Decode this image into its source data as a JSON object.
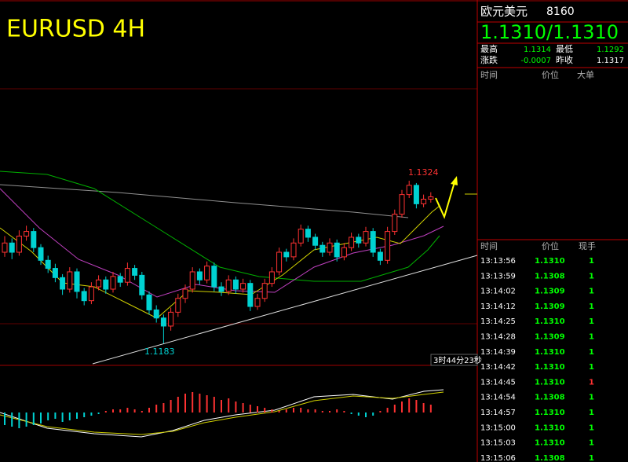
{
  "chart": {
    "title": "EURUSD 4H",
    "high_label": 1.1324,
    "low_label": 1.1183,
    "countdown": "3时44分23秒",
    "up_color": "#ff3232",
    "down_color": "#00d2d2",
    "candles": [
      [
        1.1262,
        1.1276,
        1.1258,
        1.127
      ],
      [
        1.127,
        1.1274,
        1.1256,
        1.1262
      ],
      [
        1.1262,
        1.1281,
        1.1259,
        1.1276
      ],
      [
        1.1276,
        1.1285,
        1.1272,
        1.128
      ],
      [
        1.128,
        1.1283,
        1.1262,
        1.1266
      ],
      [
        1.1266,
        1.1269,
        1.1251,
        1.1255
      ],
      [
        1.1255,
        1.1259,
        1.1244,
        1.1248
      ],
      [
        1.1248,
        1.1252,
        1.1236,
        1.124
      ],
      [
        1.124,
        1.1243,
        1.1225,
        1.123
      ],
      [
        1.123,
        1.1249,
        1.1227,
        1.1245
      ],
      [
        1.1245,
        1.1248,
        1.1222,
        1.1228
      ],
      [
        1.1228,
        1.1231,
        1.1216,
        1.122
      ],
      [
        1.122,
        1.1236,
        1.1217,
        1.1232
      ],
      [
        1.1232,
        1.1242,
        1.1229,
        1.1238
      ],
      [
        1.1238,
        1.1241,
        1.1226,
        1.123
      ],
      [
        1.123,
        1.1245,
        1.1227,
        1.1241
      ],
      [
        1.1241,
        1.1244,
        1.1232,
        1.1236
      ],
      [
        1.1236,
        1.1253,
        1.1233,
        1.1248
      ],
      [
        1.1248,
        1.1251,
        1.1238,
        1.1242
      ],
      [
        1.1242,
        1.1245,
        1.1221,
        1.1225
      ],
      [
        1.1225,
        1.1228,
        1.1208,
        1.1212
      ],
      [
        1.1212,
        1.1216,
        1.1201,
        1.1205
      ],
      [
        1.1205,
        1.1208,
        1.1183,
        1.1198
      ],
      [
        1.1198,
        1.1214,
        1.1194,
        1.121
      ],
      [
        1.121,
        1.1226,
        1.1206,
        1.1222
      ],
      [
        1.1222,
        1.1234,
        1.1218,
        1.123
      ],
      [
        1.123,
        1.1249,
        1.1227,
        1.1245
      ],
      [
        1.1245,
        1.1248,
        1.1234,
        1.1238
      ],
      [
        1.1238,
        1.1254,
        1.1235,
        1.125
      ],
      [
        1.125,
        1.1253,
        1.1228,
        1.1232
      ],
      [
        1.1232,
        1.1236,
        1.1224,
        1.1228
      ],
      [
        1.1228,
        1.1242,
        1.1225,
        1.1238
      ],
      [
        1.1238,
        1.1241,
        1.1226,
        1.123
      ],
      [
        1.123,
        1.1239,
        1.1227,
        1.1235
      ],
      [
        1.1235,
        1.1238,
        1.1211,
        1.1215
      ],
      [
        1.1215,
        1.1226,
        1.1212,
        1.1222
      ],
      [
        1.1222,
        1.1239,
        1.1219,
        1.1235
      ],
      [
        1.1235,
        1.1249,
        1.1232,
        1.1245
      ],
      [
        1.1245,
        1.1266,
        1.1242,
        1.1262
      ],
      [
        1.1262,
        1.1265,
        1.1254,
        1.1258
      ],
      [
        1.1258,
        1.1274,
        1.1255,
        1.127
      ],
      [
        1.127,
        1.1286,
        1.1267,
        1.1282
      ],
      [
        1.1282,
        1.1285,
        1.1271,
        1.1275
      ],
      [
        1.1275,
        1.1278,
        1.1264,
        1.1268
      ],
      [
        1.1268,
        1.1271,
        1.1258,
        1.1262
      ],
      [
        1.1262,
        1.1274,
        1.1259,
        1.127
      ],
      [
        1.127,
        1.1273,
        1.1254,
        1.1258
      ],
      [
        1.1258,
        1.127,
        1.1255,
        1.1266
      ],
      [
        1.1266,
        1.1279,
        1.1263,
        1.1275
      ],
      [
        1.1275,
        1.1278,
        1.1266,
        1.127
      ],
      [
        1.127,
        1.1284,
        1.1267,
        1.128
      ],
      [
        1.128,
        1.1283,
        1.1258,
        1.1262
      ],
      [
        1.1262,
        1.1265,
        1.1251,
        1.1255
      ],
      [
        1.1255,
        1.1284,
        1.1252,
        1.128
      ],
      [
        1.128,
        1.1299,
        1.1277,
        1.1295
      ],
      [
        1.1295,
        1.1316,
        1.1292,
        1.1312
      ],
      [
        1.1312,
        1.1324,
        1.1309,
        1.132
      ],
      [
        1.132,
        1.1322,
        1.13,
        1.1304
      ],
      [
        1.1304,
        1.1312,
        1.1301,
        1.1308
      ],
      [
        1.1308,
        1.1314,
        1.1305,
        1.131
      ]
    ],
    "histogram": [
      -8,
      -9,
      -10,
      -9,
      -8,
      -7,
      -5,
      -4,
      -6,
      -5,
      -4,
      -3,
      -2,
      -1,
      1,
      2,
      2,
      3,
      2,
      1,
      3,
      5,
      6,
      8,
      10,
      12,
      13,
      12,
      11,
      10,
      8,
      9,
      7,
      6,
      5,
      4,
      3,
      2,
      1,
      2,
      3,
      3,
      2,
      2,
      1,
      1,
      2,
      1,
      -1,
      -2,
      -3,
      -2,
      1,
      3,
      5,
      7,
      9,
      8,
      6,
      5
    ]
  },
  "quote": {
    "name": "欧元美元",
    "code": "8160",
    "price": "1.1310/1.1310",
    "stats": [
      {
        "label": "最高",
        "value": "1.1314",
        "color": "#00ff00"
      },
      {
        "label": "最低",
        "value": "1.1292",
        "color": "#00ff00"
      },
      {
        "label": "涨跌",
        "value": "-0.0007",
        "color": "#00ff00"
      },
      {
        "label": "昨收",
        "value": "1.1317",
        "color": "#ffffff"
      }
    ],
    "big_orders_header": [
      "时间",
      "价位",
      "大单"
    ]
  },
  "ticks": {
    "header": [
      "时间",
      "价位",
      "现手"
    ],
    "rows": [
      {
        "time": "13:13:56",
        "price": "1.1310",
        "volume": 1,
        "color": "#00ff00"
      },
      {
        "time": "13:13:59",
        "price": "1.1308",
        "volume": 1,
        "color": "#00ff00"
      },
      {
        "time": "13:14:02",
        "price": "1.1309",
        "volume": 1,
        "color": "#00ff00"
      },
      {
        "time": "13:14:12",
        "price": "1.1309",
        "volume": 1,
        "color": "#00ff00"
      },
      {
        "time": "13:14:25",
        "price": "1.1310",
        "volume": 1,
        "color": "#00ff00"
      },
      {
        "time": "13:14:28",
        "price": "1.1309",
        "volume": 1,
        "color": "#00ff00"
      },
      {
        "time": "13:14:39",
        "price": "1.1310",
        "volume": 1,
        "color": "#00ff00"
      },
      {
        "time": "13:14:42",
        "price": "1.1310",
        "volume": 1,
        "color": "#00ff00"
      },
      {
        "time": "13:14:45",
        "price": "1.1310",
        "volume": 1,
        "color": "#ff3232"
      },
      {
        "time": "13:14:54",
        "price": "1.1308",
        "volume": 1,
        "color": "#00ff00"
      },
      {
        "time": "13:14:57",
        "price": "1.1310",
        "volume": 1,
        "color": "#00ff00"
      },
      {
        "time": "13:15:00",
        "price": "1.1310",
        "volume": 1,
        "color": "#00ff00"
      },
      {
        "time": "13:15:03",
        "price": "1.1310",
        "volume": 1,
        "color": "#00ff00"
      },
      {
        "time": "13:15:06",
        "price": "1.1308",
        "volume": 1,
        "color": "#00ff00"
      }
    ]
  }
}
